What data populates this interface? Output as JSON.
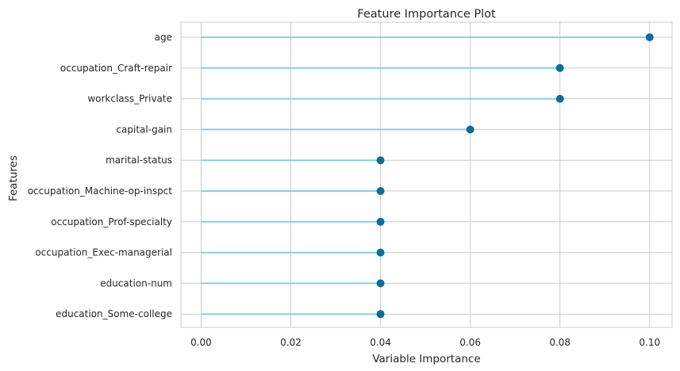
{
  "chart_data": {
    "type": "lollipop",
    "title": "Feature Importance Plot",
    "xlabel": "Variable Importance",
    "ylabel": "Features",
    "categories": [
      "age",
      "occupation_Craft-repair",
      "workclass_Private",
      "capital-gain",
      "marital-status",
      "occupation_Machine-op-inspct",
      "occupation_Prof-specialty",
      "occupation_Exec-managerial",
      "education-num",
      "education_Some-college"
    ],
    "values": [
      0.1,
      0.08,
      0.08,
      0.06,
      0.04,
      0.04,
      0.04,
      0.04,
      0.04,
      0.04
    ],
    "xlim": [
      -0.0045,
      0.105
    ],
    "xticks": [
      0.0,
      0.02,
      0.04,
      0.06,
      0.08,
      0.1
    ],
    "xtick_labels": [
      "0.00",
      "0.02",
      "0.04",
      "0.06",
      "0.08",
      "0.10"
    ],
    "grid": true,
    "colors": {
      "stem": "#87CEEB",
      "marker": "#0a6e9e",
      "grid": "#cccccc",
      "frame": "#cccccc"
    }
  }
}
